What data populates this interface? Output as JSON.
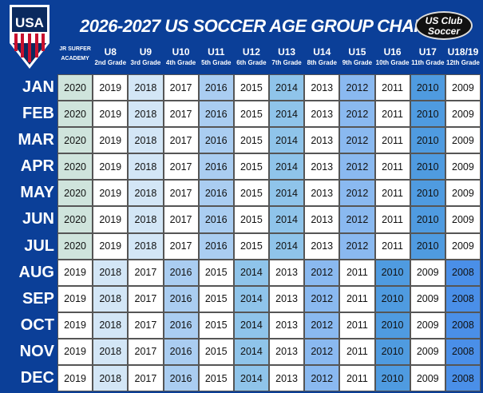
{
  "title": "2026-2027 US SOCCER AGE GROUP CHART",
  "logos": {
    "left": "USA",
    "right": "US Club Soccer"
  },
  "chart_data": {
    "type": "table",
    "title": "2026-2027 US SOCCER AGE GROUP CHART",
    "columns": [
      {
        "group": "JR SURFER",
        "grade": "ACADEMY"
      },
      {
        "group": "U8",
        "grade": "2nd Grade"
      },
      {
        "group": "U9",
        "grade": "3rd Grade"
      },
      {
        "group": "U10",
        "grade": "4th Grade"
      },
      {
        "group": "U11",
        "grade": "5th Grade"
      },
      {
        "group": "U12",
        "grade": "6th Grade"
      },
      {
        "group": "U13",
        "grade": "7th Grade"
      },
      {
        "group": "U14",
        "grade": "8th Grade"
      },
      {
        "group": "U15",
        "grade": "9th Grade"
      },
      {
        "group": "U16",
        "grade": "10th Grade"
      },
      {
        "group": "U17",
        "grade": "11th Grade"
      },
      {
        "group": "U18/19",
        "grade": "12th Grade"
      }
    ],
    "rows": [
      {
        "month": "JAN",
        "years": [
          2020,
          2019,
          2018,
          2017,
          2016,
          2015,
          2014,
          2013,
          2012,
          2011,
          2010,
          2009
        ]
      },
      {
        "month": "FEB",
        "years": [
          2020,
          2019,
          2018,
          2017,
          2016,
          2015,
          2014,
          2013,
          2012,
          2011,
          2010,
          2009
        ]
      },
      {
        "month": "MAR",
        "years": [
          2020,
          2019,
          2018,
          2017,
          2016,
          2015,
          2014,
          2013,
          2012,
          2011,
          2010,
          2009
        ]
      },
      {
        "month": "APR",
        "years": [
          2020,
          2019,
          2018,
          2017,
          2016,
          2015,
          2014,
          2013,
          2012,
          2011,
          2010,
          2009
        ]
      },
      {
        "month": "MAY",
        "years": [
          2020,
          2019,
          2018,
          2017,
          2016,
          2015,
          2014,
          2013,
          2012,
          2011,
          2010,
          2009
        ]
      },
      {
        "month": "JUN",
        "years": [
          2020,
          2019,
          2018,
          2017,
          2016,
          2015,
          2014,
          2013,
          2012,
          2011,
          2010,
          2009
        ]
      },
      {
        "month": "JUL",
        "years": [
          2020,
          2019,
          2018,
          2017,
          2016,
          2015,
          2014,
          2013,
          2012,
          2011,
          2010,
          2009
        ]
      },
      {
        "month": "AUG",
        "years": [
          2019,
          2018,
          2017,
          2016,
          2015,
          2014,
          2013,
          2012,
          2011,
          2010,
          2009,
          2008
        ]
      },
      {
        "month": "SEP",
        "years": [
          2019,
          2018,
          2017,
          2016,
          2015,
          2014,
          2013,
          2012,
          2011,
          2010,
          2009,
          2008
        ]
      },
      {
        "month": "OCT",
        "years": [
          2019,
          2018,
          2017,
          2016,
          2015,
          2014,
          2013,
          2012,
          2011,
          2010,
          2009,
          2008
        ]
      },
      {
        "month": "NOV",
        "years": [
          2019,
          2018,
          2017,
          2016,
          2015,
          2014,
          2013,
          2012,
          2011,
          2010,
          2009,
          2008
        ]
      },
      {
        "month": "DEC",
        "years": [
          2019,
          2018,
          2017,
          2016,
          2015,
          2014,
          2013,
          2012,
          2011,
          2010,
          2009,
          2008
        ]
      }
    ],
    "year_colors": {
      "2020": "#cfe4dc",
      "2019": "#ffffff",
      "2018": "#d3e6f6",
      "2017": "#ffffff",
      "2016": "#aacdf1",
      "2015": "#ffffff",
      "2014": "#8fc4ea",
      "2013": "#ffffff",
      "2012": "#8ab9f0",
      "2011": "#ffffff",
      "2010": "#4f9be0",
      "2009": "#ffffff",
      "2008": "#4a8fe8"
    }
  }
}
